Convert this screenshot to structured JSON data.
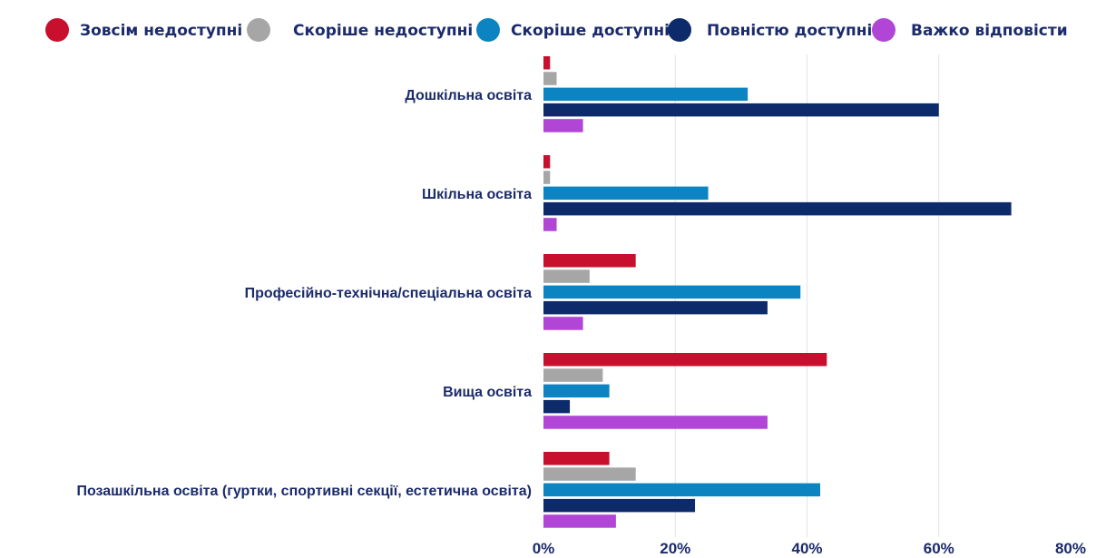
{
  "chart_data": {
    "type": "bar",
    "orientation": "horizontal",
    "categories": [
      "Дошкільна освіта",
      "Шкільна освіта",
      "Професійно-технічна/спеціальна освіта",
      "Вища освіта",
      "Позашкільна освіта (гуртки, спортивні секції, естетична освіта)"
    ],
    "series": [
      {
        "name": "Зовсім недоступні",
        "color": "#c8102e",
        "values": [
          1,
          1,
          14,
          43,
          10
        ]
      },
      {
        "name": "Скоріше недоступні",
        "color": "#a6a6a6",
        "values": [
          2,
          1,
          7,
          9,
          14
        ]
      },
      {
        "name": "Скоріше доступні",
        "color": "#0b84c1",
        "values": [
          31,
          25,
          39,
          10,
          42
        ]
      },
      {
        "name": "Повністю доступні",
        "color": "#0d2b6b",
        "values": [
          60,
          71,
          34,
          4,
          23
        ]
      },
      {
        "name": "Важко відповісти",
        "color": "#b145d6",
        "values": [
          6,
          2,
          6,
          34,
          11
        ]
      }
    ],
    "xlim": [
      0,
      80
    ],
    "xticks": [
      0,
      20,
      40,
      60,
      80
    ],
    "tick_labels": [
      "0%",
      "20%",
      "40%",
      "60%",
      "80%"
    ],
    "legend_position": "top",
    "grid": true
  }
}
